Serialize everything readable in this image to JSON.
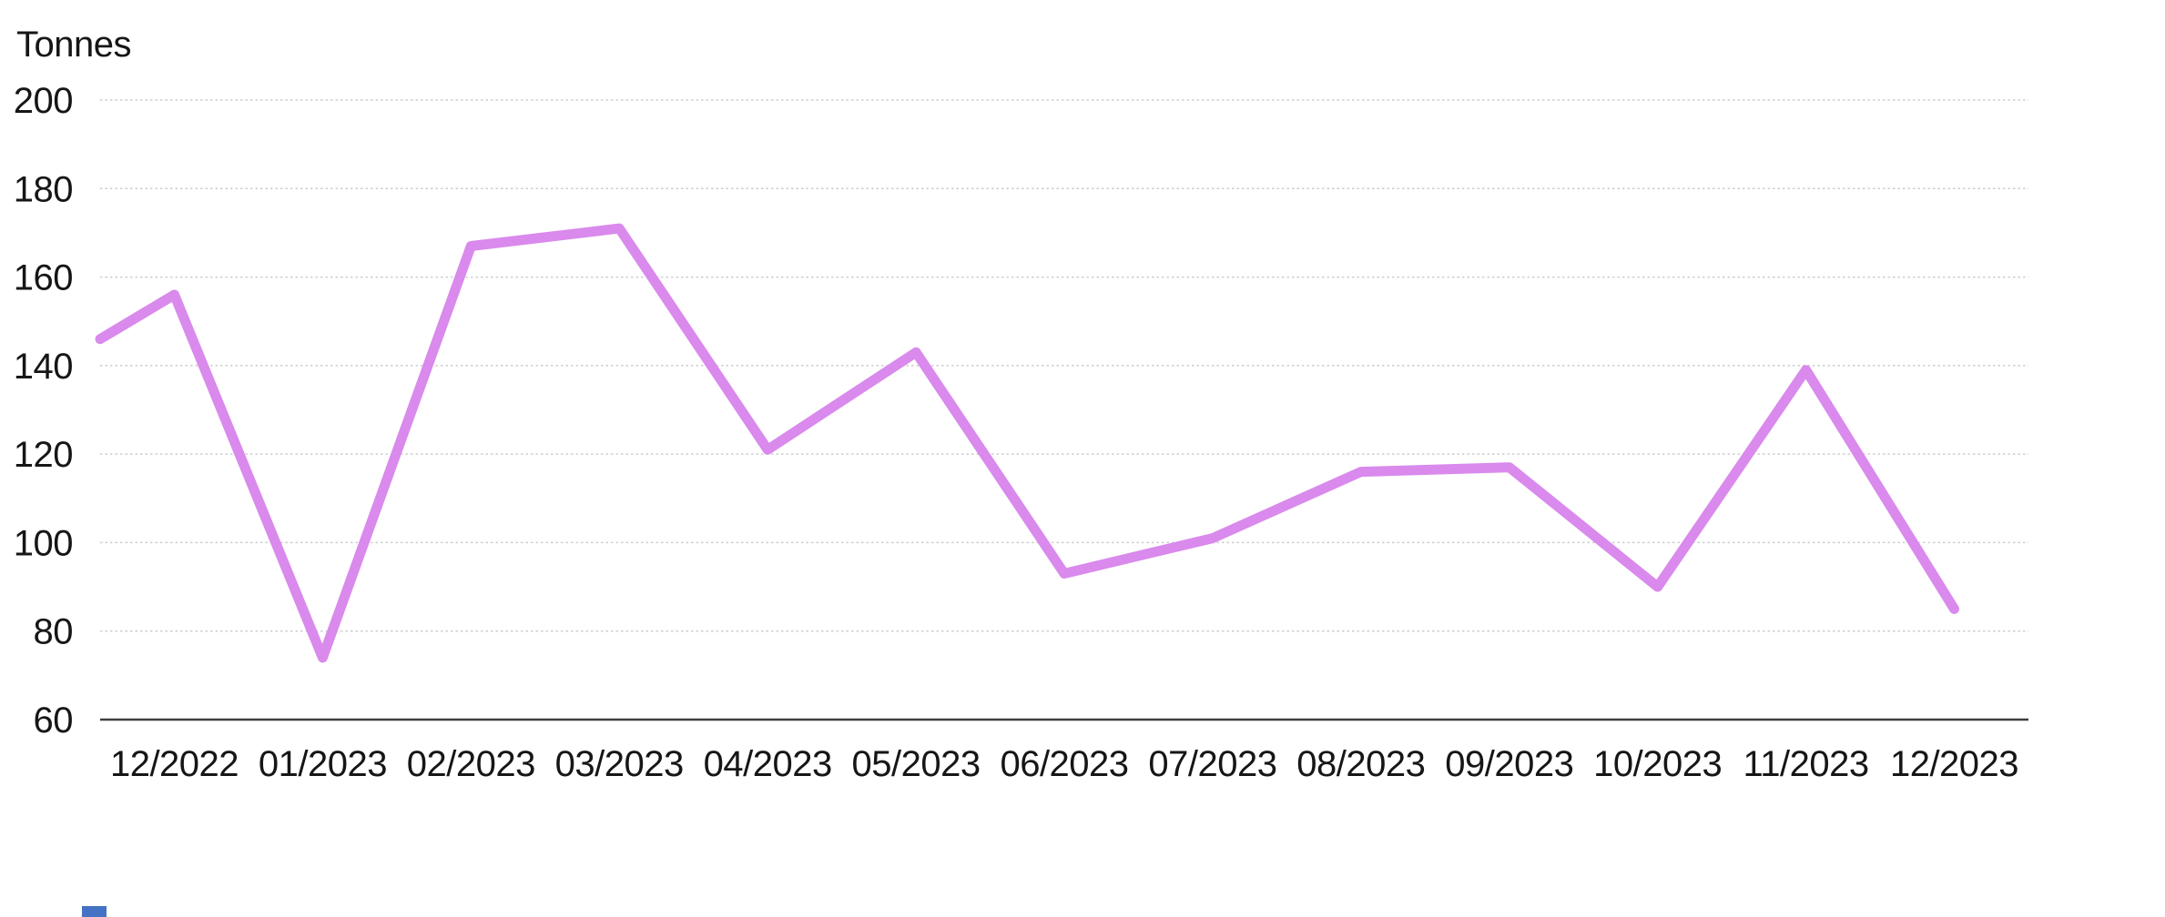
{
  "window": {
    "background": "#ffffff"
  },
  "chart_data": {
    "type": "line",
    "title": "",
    "ylabel": "Tonnes",
    "xlabel": "",
    "categories": [
      "12/2022",
      "01/2023",
      "02/2023",
      "03/2023",
      "04/2023",
      "05/2023",
      "06/2023",
      "07/2023",
      "08/2023",
      "09/2023",
      "10/2023",
      "11/2023",
      "12/2023"
    ],
    "series": [
      {
        "name": "Tonnes",
        "values": [
          156,
          74,
          167,
          171,
          121,
          143,
          93,
          101,
          116,
          117,
          90,
          139,
          85
        ],
        "edge_start_value": 146,
        "color": "#D98AEC"
      }
    ],
    "ylim": [
      60,
      200
    ],
    "yticks": [
      200,
      180,
      160,
      140,
      120,
      100,
      80,
      60
    ],
    "ytick_interval": 20,
    "grid": "horizontal dotted",
    "legend": "none",
    "axis_line": "bottom only"
  },
  "styles": {
    "grid_color": "#CDCDCD",
    "axis_color": "#3F3F3F",
    "text_color": "#161616",
    "line_width": 11
  },
  "decorations": {
    "bottom_left_fragment_color": "#4472C4"
  }
}
